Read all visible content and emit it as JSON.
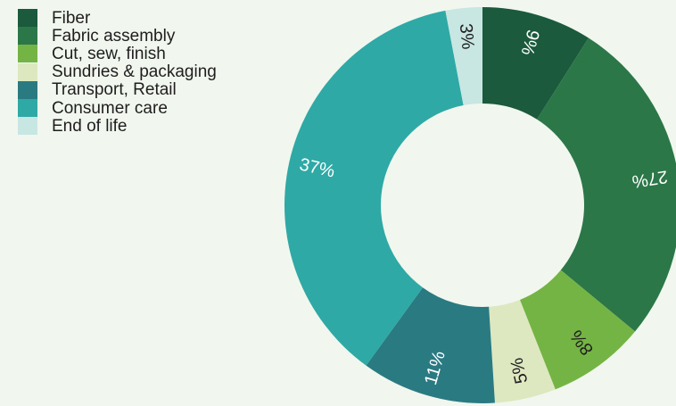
{
  "chart_data": {
    "type": "pie",
    "variant": "donut",
    "title": "",
    "legend_position": "top-left",
    "slices": [
      {
        "name": "Fiber",
        "value": 9,
        "label": "9%",
        "color": "#1b5a3c",
        "label_color": "#ffffff"
      },
      {
        "name": "Fabric assembly",
        "value": 27,
        "label": "27%",
        "color": "#2b7748",
        "label_color": "#ffffff"
      },
      {
        "name": "Cut, sew, finish",
        "value": 8,
        "label": "8%",
        "color": "#74b444",
        "label_color": "#1e1e1e"
      },
      {
        "name": "Sundries & packaging",
        "value": 5,
        "label": "5%",
        "color": "#dde8c0",
        "label_color": "#1e1e1e"
      },
      {
        "name": "Transport, Retail",
        "value": 11,
        "label": "11%",
        "color": "#2a7a82",
        "label_color": "#ffffff"
      },
      {
        "name": "Consumer care",
        "value": 37,
        "label": "37%",
        "color": "#2ea9a6",
        "label_color": "#ffffff"
      },
      {
        "name": "End of life",
        "value": 3,
        "label": "3%",
        "color": "#c8e6e2",
        "label_color": "#1e1e1e"
      }
    ]
  }
}
